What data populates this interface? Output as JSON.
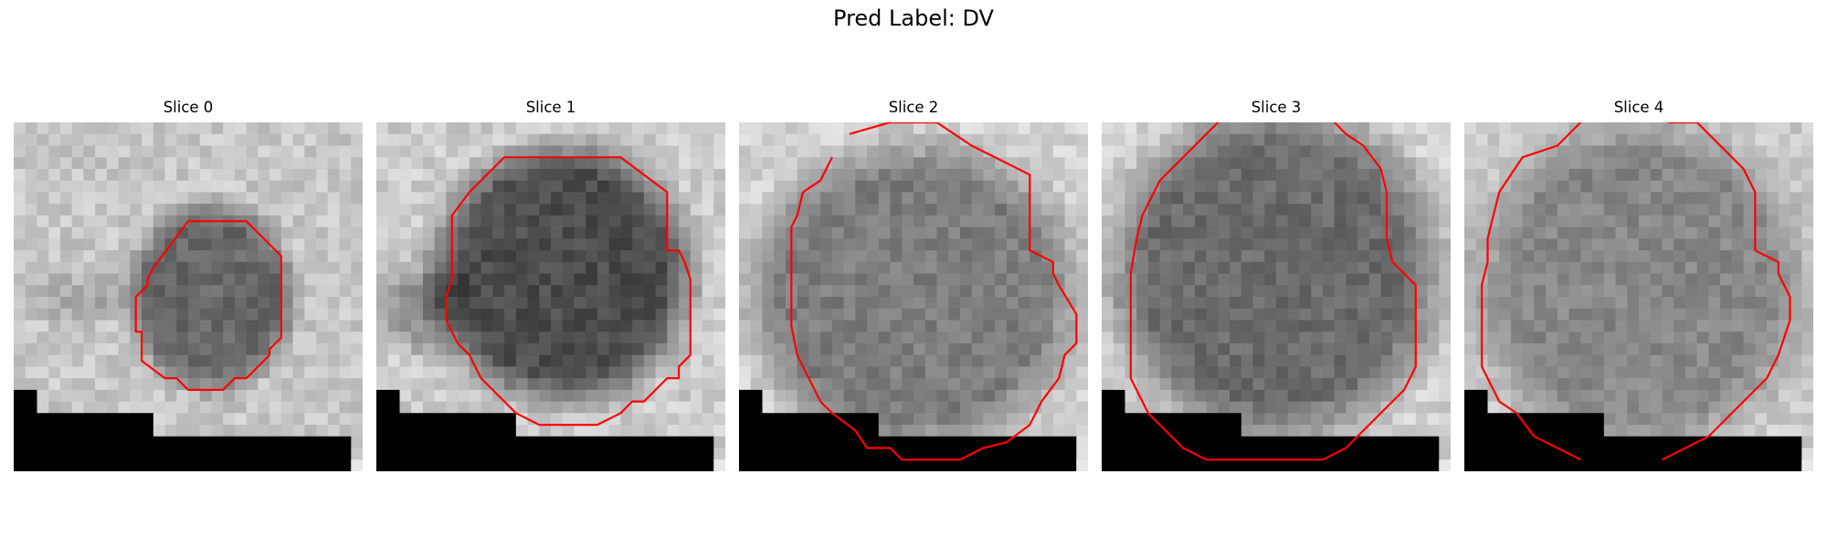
{
  "title": "Pred Label: DV",
  "panels": [
    {
      "title": "Slice 0"
    },
    {
      "title": "Slice 1"
    },
    {
      "title": "Slice 2"
    },
    {
      "title": "Slice 3"
    },
    {
      "title": "Slice 4"
    }
  ],
  "colors": {
    "contour": "#ff0000",
    "background": "#ffffff",
    "mask": "#000000"
  }
}
